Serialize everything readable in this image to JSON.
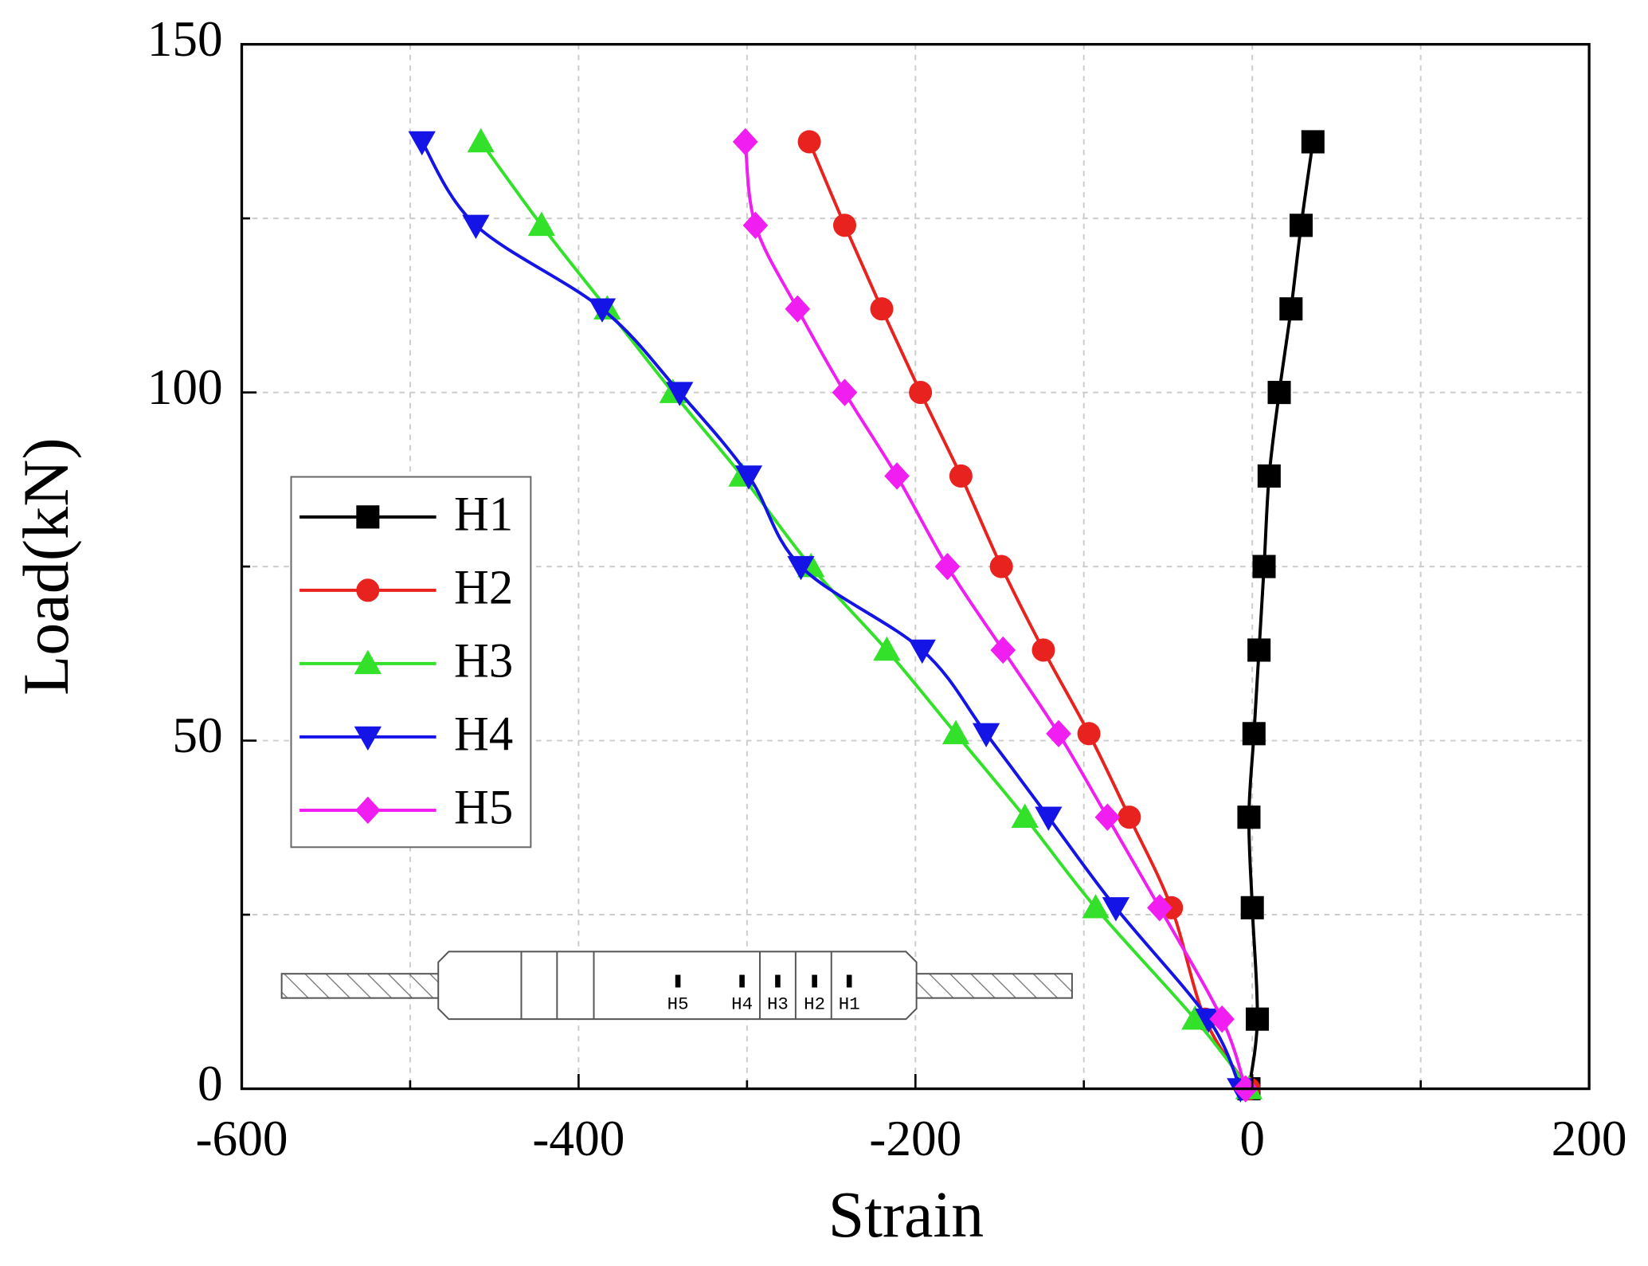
{
  "chart_data": {
    "type": "line",
    "x_label": "Strain",
    "y_label": "Load(kN)",
    "xlim": [
      -600,
      200
    ],
    "ylim": [
      0,
      150
    ],
    "xticks": [
      -600,
      -400,
      -200,
      0,
      200
    ],
    "yticks": [
      0,
      50,
      100,
      150
    ],
    "xminor": [
      -500,
      -300,
      -100,
      100
    ],
    "yminor": [
      25,
      75,
      125
    ],
    "grid": true,
    "legend": "left",
    "inset_labels": [
      "H5",
      "H4",
      "H3",
      "H2",
      "H1"
    ],
    "series": [
      {
        "name": "H1",
        "color": "#000000",
        "marker": "square",
        "x": [
          -2,
          3,
          0,
          -2,
          1,
          4,
          7,
          10,
          16,
          23,
          29,
          36
        ],
        "values": [
          0,
          10,
          26,
          39,
          51,
          63,
          75,
          88,
          100,
          112,
          124,
          136
        ]
      },
      {
        "name": "H2",
        "color": "#e8231f",
        "marker": "circle",
        "x": [
          -2,
          -28,
          -48,
          -73,
          -97,
          -124,
          -149,
          -173,
          -197,
          -220,
          -242,
          -263
        ],
        "values": [
          0,
          10,
          26,
          39,
          51,
          63,
          75,
          88,
          100,
          112,
          124,
          136
        ]
      },
      {
        "name": "H3",
        "color": "#33e02a",
        "marker": "triangle-up",
        "x": [
          -2,
          -34,
          -93,
          -135,
          -176,
          -217,
          -262,
          -303,
          -344,
          -383,
          -422,
          -458
        ],
        "values": [
          0,
          10,
          26,
          39,
          51,
          63,
          75,
          88,
          100,
          112,
          124,
          136
        ]
      },
      {
        "name": "H4",
        "color": "#1414e6",
        "marker": "triangle-down",
        "x": [
          -7,
          -26,
          -81,
          -121,
          -158,
          -196,
          -268,
          -299,
          -340,
          -386,
          -461,
          -493
        ],
        "values": [
          0,
          10,
          26,
          39,
          51,
          63,
          75,
          88,
          100,
          112,
          124,
          136
        ]
      },
      {
        "name": "H5",
        "color": "#f01ef0",
        "marker": "diamond",
        "x": [
          -4,
          -18,
          -55,
          -86,
          -115,
          -148,
          -181,
          -211,
          -242,
          -270,
          -295,
          -301
        ],
        "values": [
          0,
          10,
          26,
          39,
          51,
          63,
          75,
          88,
          100,
          112,
          124,
          136
        ]
      }
    ]
  }
}
